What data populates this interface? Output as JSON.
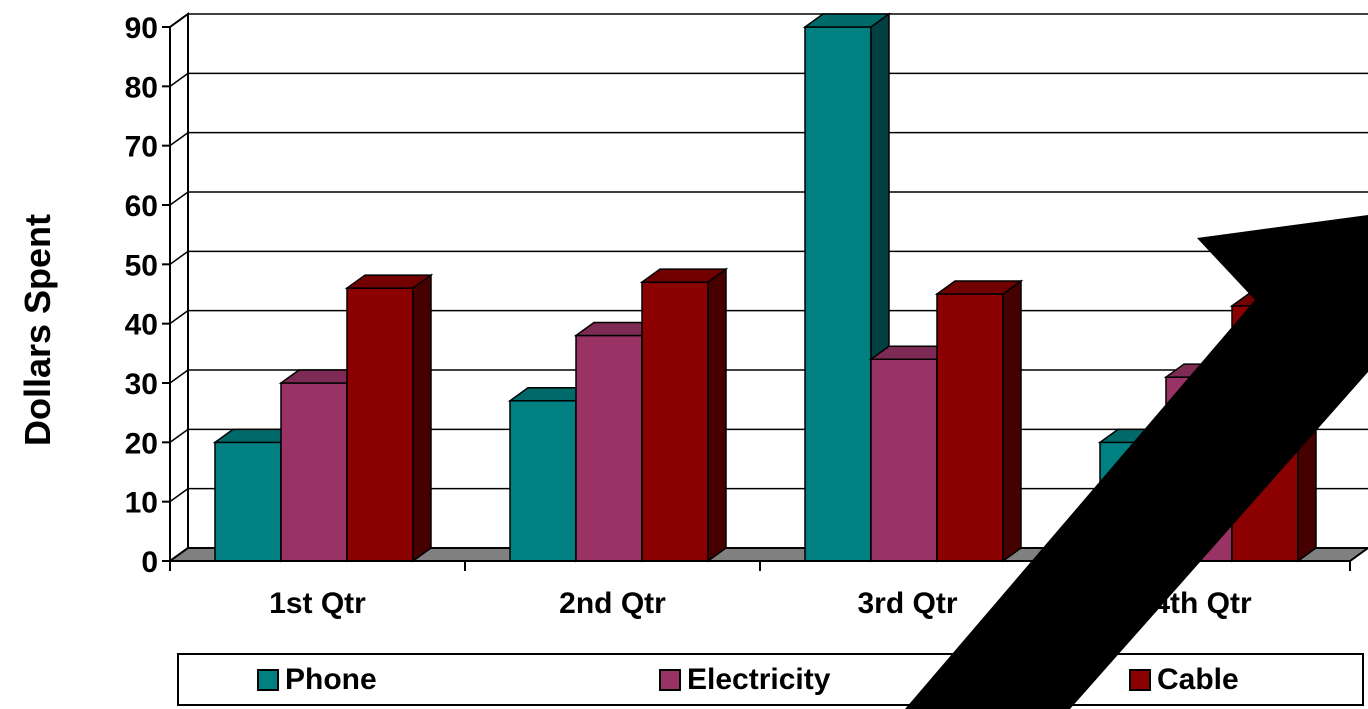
{
  "chart_data": {
    "type": "bar",
    "ylabel": "Dollars Spent",
    "ylim": [
      0,
      90
    ],
    "yticks": [
      0,
      10,
      20,
      30,
      40,
      50,
      60,
      70,
      80,
      90
    ],
    "categories": [
      "1st Qtr",
      "2nd Qtr",
      "3rd Qtr",
      "4th Qtr"
    ],
    "series": [
      {
        "name": "Phone",
        "color": "#008080",
        "values": [
          20,
          27,
          90,
          20
        ]
      },
      {
        "name": "Electricity",
        "color": "#993366",
        "values": [
          30,
          38,
          34,
          31
        ]
      },
      {
        "name": "Cable",
        "color": "#8B0000",
        "values": [
          46,
          47,
          45,
          43
        ]
      }
    ],
    "grid": true,
    "legend_position": "bottom",
    "style": "3d-clustered-column"
  }
}
